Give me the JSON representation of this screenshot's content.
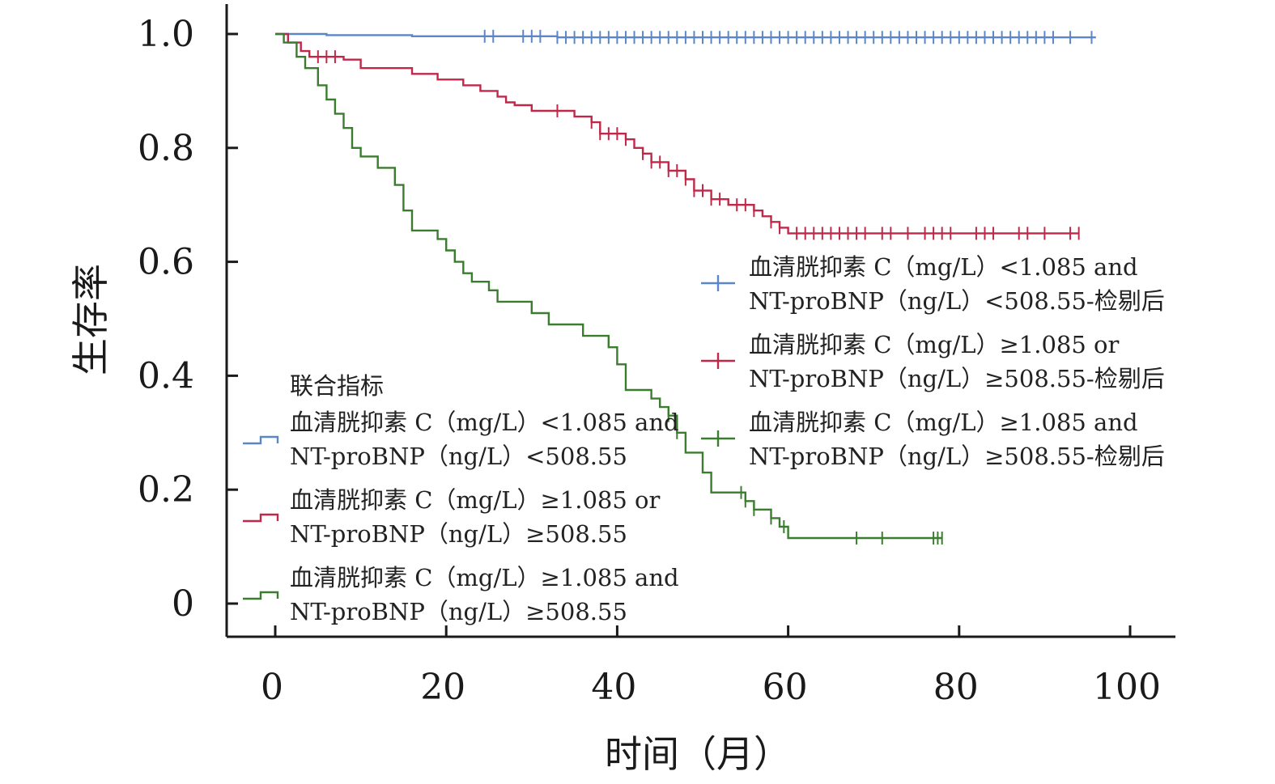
{
  "chart_data": {
    "type": "line",
    "xlabel": "时间（月）",
    "ylabel": "生存率",
    "xlim": [
      0,
      100
    ],
    "ylim": [
      0,
      1
    ],
    "xticks": [
      {
        "value": 0,
        "label": "0"
      },
      {
        "value": 20,
        "label": "20"
      },
      {
        "value": 40,
        "label": "40"
      },
      {
        "value": 60,
        "label": "60"
      },
      {
        "value": 80,
        "label": "80"
      },
      {
        "value": 100,
        "label": "100"
      }
    ],
    "yticks": [
      {
        "value": 0,
        "label": "0"
      },
      {
        "value": 0.2,
        "label": "0.2"
      },
      {
        "value": 0.4,
        "label": "0.4"
      },
      {
        "value": 0.6,
        "label": "0.6"
      },
      {
        "value": 0.8,
        "label": "0.8"
      },
      {
        "value": 1.0,
        "label": "1.0"
      }
    ],
    "grid": false,
    "series": [
      {
        "color": "#5b87c9",
        "steps": [
          [
            0,
            1.0
          ],
          [
            6,
            0.998
          ],
          [
            16,
            0.996
          ],
          [
            33,
            0.994
          ],
          [
            96,
            0.994
          ]
        ],
        "censor": [
          24.5,
          25.5,
          29,
          30,
          31,
          33,
          34,
          35,
          36,
          37,
          38,
          39,
          40,
          41,
          42,
          43,
          44,
          45,
          46,
          47,
          48,
          49,
          50,
          51,
          52,
          53,
          54,
          55,
          56,
          57,
          58,
          59,
          60,
          61,
          62,
          63,
          64,
          65,
          66,
          67,
          68,
          69,
          70,
          71,
          72,
          73,
          74,
          75,
          76,
          77,
          78,
          79,
          80,
          81,
          82,
          83,
          84,
          85,
          86,
          87,
          88,
          89,
          90,
          91,
          93,
          95.5
        ]
      },
      {
        "color": "#c0284a",
        "steps": [
          [
            0,
            1.0
          ],
          [
            1.5,
            0.985
          ],
          [
            3,
            0.97
          ],
          [
            4,
            0.96
          ],
          [
            8,
            0.955
          ],
          [
            10,
            0.94
          ],
          [
            16,
            0.93
          ],
          [
            19,
            0.92
          ],
          [
            22,
            0.91
          ],
          [
            24,
            0.9
          ],
          [
            26,
            0.89
          ],
          [
            27,
            0.88
          ],
          [
            28,
            0.875
          ],
          [
            30,
            0.865
          ],
          [
            35,
            0.855
          ],
          [
            37,
            0.845
          ],
          [
            38,
            0.825
          ],
          [
            41,
            0.815
          ],
          [
            42,
            0.8
          ],
          [
            43,
            0.79
          ],
          [
            44,
            0.775
          ],
          [
            46,
            0.76
          ],
          [
            48,
            0.745
          ],
          [
            49,
            0.725
          ],
          [
            51,
            0.71
          ],
          [
            53,
            0.7
          ],
          [
            56,
            0.69
          ],
          [
            57,
            0.68
          ],
          [
            58,
            0.67
          ],
          [
            59,
            0.66
          ],
          [
            60,
            0.65
          ],
          [
            94,
            0.65
          ]
        ],
        "censor": [
          5,
          6,
          7,
          33,
          37,
          38,
          39,
          40,
          41,
          43,
          44,
          45,
          46,
          47,
          48,
          49,
          50,
          51,
          52,
          54,
          55,
          56,
          58,
          59,
          61,
          62,
          63,
          64,
          65,
          66,
          67,
          68,
          69,
          71,
          72,
          74,
          76,
          77,
          78,
          79,
          82,
          83,
          84,
          87,
          88,
          90,
          93,
          94
        ]
      },
      {
        "color": "#3a7d2f",
        "steps": [
          [
            0,
            1.0
          ],
          [
            1,
            0.985
          ],
          [
            2.5,
            0.96
          ],
          [
            3.5,
            0.94
          ],
          [
            5,
            0.91
          ],
          [
            6,
            0.885
          ],
          [
            7,
            0.86
          ],
          [
            8,
            0.835
          ],
          [
            9,
            0.8
          ],
          [
            10,
            0.785
          ],
          [
            12,
            0.765
          ],
          [
            14,
            0.735
          ],
          [
            15,
            0.69
          ],
          [
            16,
            0.655
          ],
          [
            19,
            0.64
          ],
          [
            20,
            0.62
          ],
          [
            21,
            0.6
          ],
          [
            22,
            0.58
          ],
          [
            23,
            0.565
          ],
          [
            25,
            0.55
          ],
          [
            26,
            0.53
          ],
          [
            30,
            0.51
          ],
          [
            32,
            0.49
          ],
          [
            36,
            0.47
          ],
          [
            39,
            0.45
          ],
          [
            40,
            0.42
          ],
          [
            41,
            0.375
          ],
          [
            44,
            0.36
          ],
          [
            45,
            0.345
          ],
          [
            46,
            0.33
          ],
          [
            47,
            0.3
          ],
          [
            48,
            0.265
          ],
          [
            50,
            0.23
          ],
          [
            51,
            0.195
          ],
          [
            55,
            0.18
          ],
          [
            56,
            0.165
          ],
          [
            58,
            0.15
          ],
          [
            59,
            0.135
          ],
          [
            60,
            0.115
          ],
          [
            78,
            0.115
          ]
        ],
        "censor": [
          46,
          47,
          54.5,
          55,
          56,
          58,
          59.5,
          68,
          71,
          77,
          77.5,
          78
        ]
      }
    ],
    "legend_main": {
      "title": "联合指标",
      "entries": [
        {
          "line1": "血清胱抑素 C（mg/L）<1.085 and",
          "line2": "NT-proBNP（ng/L）<508.55"
        },
        {
          "line1": "血清胱抑素 C（mg/L）≥1.085 or",
          "line2": "NT-proBNP（ng/L）≥508.55"
        },
        {
          "line1": "血清胱抑素 C（mg/L）≥1.085 and",
          "line2": "NT-proBNP（ng/L）≥508.55"
        }
      ]
    },
    "legend_censored": {
      "entries": [
        {
          "line1": "血清胱抑素 C（mg/L）<1.085 and",
          "line2": "NT-proBNP（ng/L）<508.55-检剔后"
        },
        {
          "line1": "血清胱抑素 C（mg/L）≥1.085 or",
          "line2": "NT-proBNP（ng/L）≥508.55-检剔后"
        },
        {
          "line1": "血清胱抑素 C（mg/L）≥1.085 and",
          "line2": "NT-proBNP（ng/L）≥508.55-检剔后"
        }
      ]
    }
  }
}
